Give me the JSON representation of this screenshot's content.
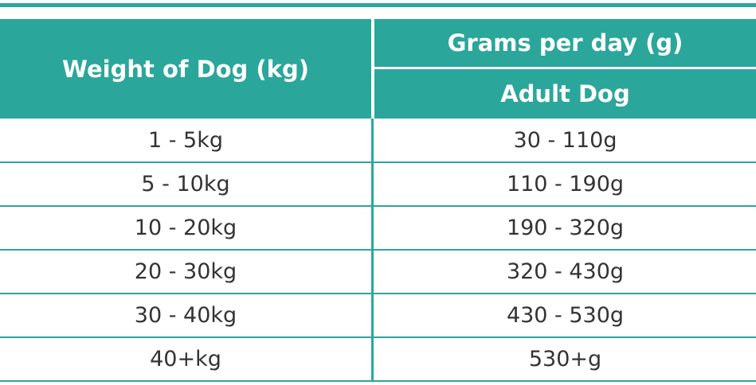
{
  "table": {
    "header": {
      "weight": "Weight of Dog (kg)",
      "grams": "Grams per day (g)",
      "subheader": "Adult Dog"
    },
    "rows": [
      [
        "1 - 5kg",
        "30 - 110g"
      ],
      [
        "5 - 10kg",
        "110 - 190g"
      ],
      [
        "10 - 20kg",
        "190 - 320g"
      ],
      [
        "20 - 30kg",
        "320 - 430g"
      ],
      [
        "30 - 40kg",
        "430 - 530g"
      ],
      [
        "40+kg",
        "530+g"
      ]
    ]
  }
}
